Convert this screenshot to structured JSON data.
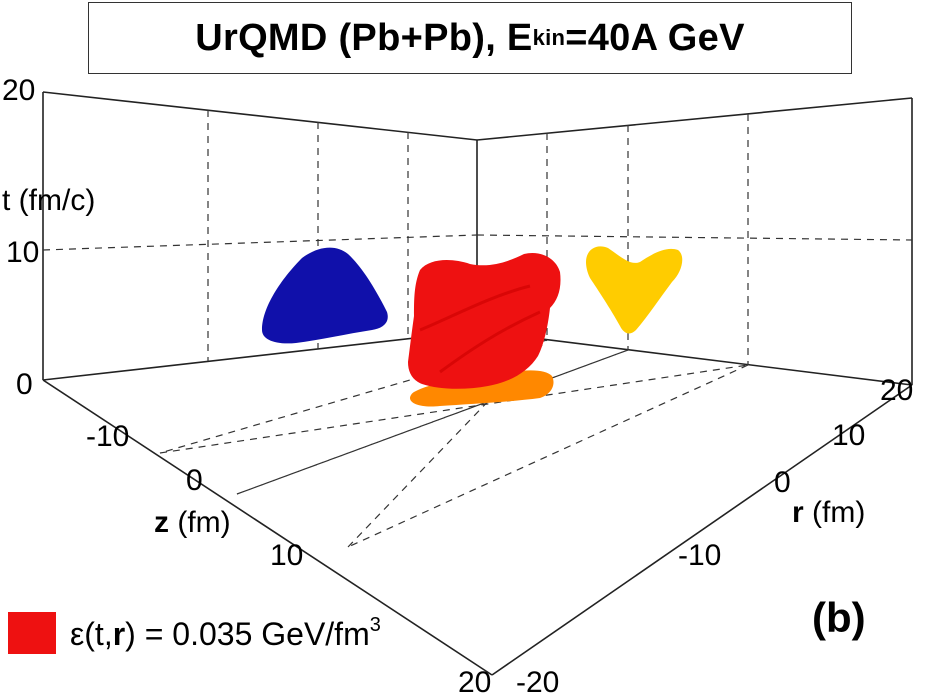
{
  "chart_data": {
    "type": "3d-surface-projection",
    "title": {
      "prefix": "UrQMD (Pb+Pb), E",
      "subscript": "kin",
      "suffix": "=40A GeV"
    },
    "axes": {
      "t": {
        "label": "t (fm/c)",
        "range": [
          0,
          20
        ],
        "ticks": [
          "0",
          "10",
          "20"
        ]
      },
      "z": {
        "label_bold": "z",
        "label_rest": " (fm)",
        "range": [
          -20,
          20
        ],
        "ticks": [
          "-10",
          "0",
          "10",
          "20"
        ]
      },
      "r": {
        "label_bold": "r",
        "label_rest": " (fm)",
        "range": [
          -20,
          20
        ],
        "ticks": [
          "20",
          "10",
          "0",
          "-10",
          "-20"
        ]
      }
    },
    "grid": true,
    "legend": {
      "label_prefix": "ε(t,",
      "label_bold": "r",
      "label_mid": ") = 0.035 GeV/fm",
      "label_sup": "3",
      "placement": "bottom-left"
    },
    "panel_label": "(b)",
    "surfaces": [
      {
        "name": "isosurface",
        "color": "#ee1111"
      },
      {
        "name": "projection-back-wall-z",
        "color": "#1010aa"
      },
      {
        "name": "projection-back-wall-r",
        "color": "#ffcc00"
      },
      {
        "name": "projection-floor",
        "color": "#ff8800"
      }
    ]
  }
}
